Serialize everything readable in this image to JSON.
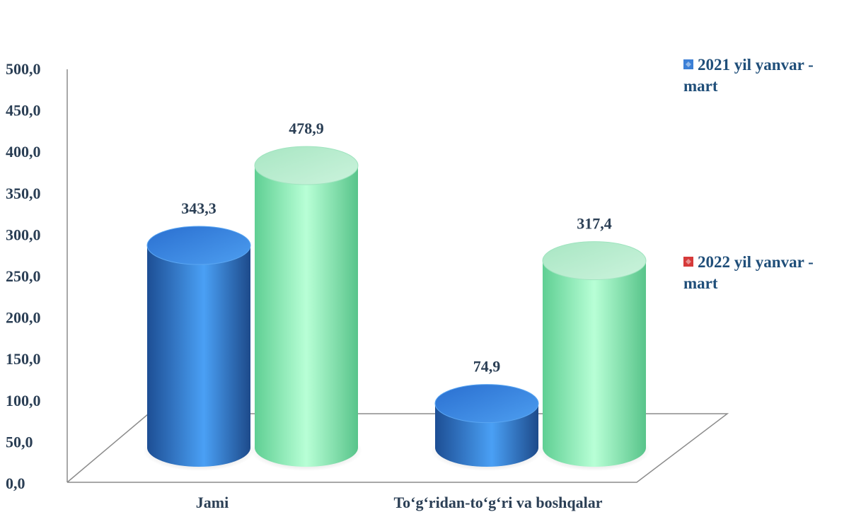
{
  "chart_data": {
    "type": "bar",
    "style": "3d-cylinder",
    "categories": [
      "Jami",
      "To‘g‘ridan-to‘g‘ri va boshqalar"
    ],
    "series": [
      {
        "name": "2021 yil yanvar - mart",
        "values": [
          343.3,
          74.9
        ],
        "value_labels": [
          "343,3",
          "74,9"
        ],
        "color": "#3f86d9",
        "legend_color": "#3b7fd6"
      },
      {
        "name": "2022 yil yanvar - mart",
        "values": [
          478.9,
          317.4
        ],
        "value_labels": [
          "478,9",
          "317,4"
        ],
        "color": "#7fe8b0",
        "legend_color": "#d63a3a"
      }
    ],
    "yticks": [
      "0,0",
      "50,0",
      "100,0",
      "150,0",
      "200,0",
      "250,0",
      "300,0",
      "350,0",
      "400,0",
      "450,0",
      "500,0"
    ],
    "ylim": [
      0,
      500
    ],
    "grid": false,
    "legend_position": "right"
  }
}
